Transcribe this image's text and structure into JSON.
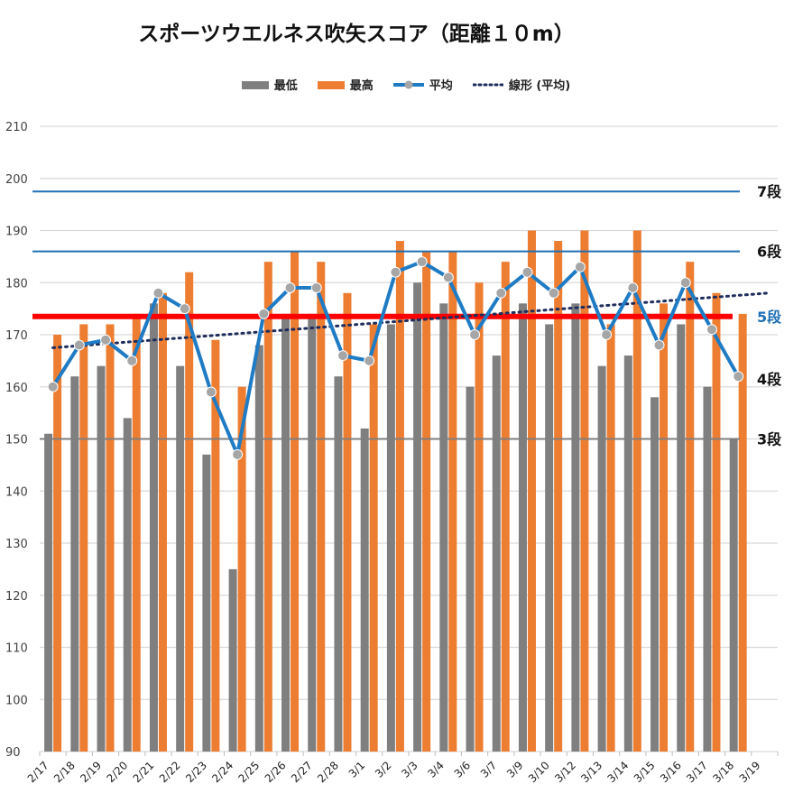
{
  "colors": {
    "min": "#7f7f7f",
    "max": "#ed7d31",
    "avg": "#1f7bc4",
    "avg_marker": "#a6a6a6",
    "trend": "#1f2d5c",
    "level_line": "#1f6fb5",
    "level3_line": "#7f7f7f",
    "target_line": "#ff0000",
    "grid": "#d9d9d9"
  },
  "chart_data": {
    "type": "bar",
    "title": "スポーツウエルネス吹矢スコア（距離１０m）",
    "ylim": [
      90,
      210
    ],
    "yticks": [
      90,
      100,
      110,
      120,
      130,
      140,
      150,
      160,
      170,
      180,
      190,
      200,
      210
    ],
    "grid": true,
    "legend_position": "top",
    "legend": [
      {
        "key": "min",
        "label": "最低",
        "style": "bar"
      },
      {
        "key": "max",
        "label": "最高",
        "style": "bar"
      },
      {
        "key": "avg",
        "label": "平均",
        "style": "line-marker"
      },
      {
        "key": "trend",
        "label": "線形 (平均)",
        "style": "dotted"
      }
    ],
    "categories": [
      "2/17",
      "2/18",
      "2/19",
      "2/20",
      "2/21",
      "2/22",
      "2/23",
      "2/24",
      "2/25",
      "2/26",
      "2/27",
      "2/28",
      "3/1",
      "3/2",
      "3/3",
      "3/4",
      "3/6",
      "3/7",
      "3/9",
      "3/10",
      "3/12",
      "3/13",
      "3/14",
      "3/15",
      "3/16",
      "3/17",
      "3/18",
      "3/19"
    ],
    "series": [
      {
        "name": "最低",
        "type": "bar",
        "values": [
          151,
          162,
          164,
          154,
          176,
          164,
          147,
          125,
          168,
          174,
          174,
          162,
          152,
          172,
          180,
          176,
          160,
          166,
          176,
          172,
          176,
          164,
          166,
          158,
          172,
          160,
          150,
          null
        ]
      },
      {
        "name": "最高",
        "type": "bar",
        "values": [
          170,
          172,
          172,
          174,
          178,
          182,
          169,
          160,
          184,
          186,
          184,
          178,
          172,
          188,
          186,
          186,
          180,
          184,
          190,
          188,
          190,
          172,
          190,
          176,
          184,
          178,
          174,
          null
        ]
      },
      {
        "name": "平均",
        "type": "line",
        "values": [
          160,
          168,
          169,
          165,
          178,
          175,
          159,
          147,
          174,
          179,
          179,
          166,
          165,
          182,
          184,
          181,
          170,
          178,
          182,
          178,
          183,
          170,
          179,
          168,
          180,
          171,
          162,
          null
        ]
      },
      {
        "name": "線形 (平均)",
        "type": "trend",
        "start": 167.5,
        "end": 178
      }
    ],
    "reference_lines": [
      {
        "value": 197.5,
        "label": "7段",
        "style": "level"
      },
      {
        "value": 186,
        "label": "6段",
        "style": "level"
      },
      {
        "value": 173.5,
        "label": "5段",
        "style": "target"
      },
      {
        "value": 161.5,
        "label": "4段",
        "style": "label-only"
      },
      {
        "value": 150,
        "label": "3段",
        "style": "level3"
      }
    ]
  }
}
